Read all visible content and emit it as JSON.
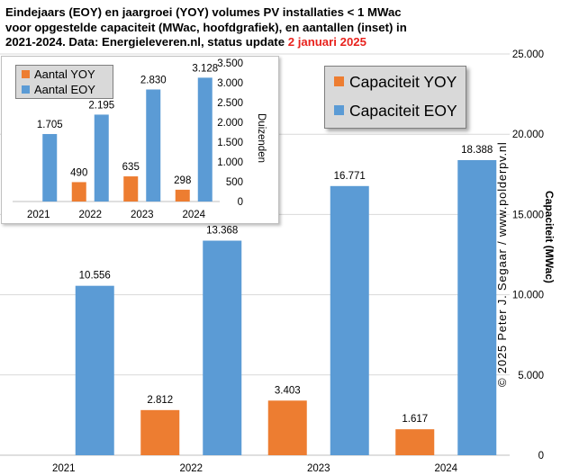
{
  "title": {
    "line1": "Eindejaars (EOY) en jaargroei (YOY) volumes PV installaties < 1 MWac",
    "line2": "voor opgestelde capaciteit (MWac, hoofdgrafiek), en aantallen (inset) in",
    "line3_pre": "2021-2024. Data: Energieleveren.nl, status update ",
    "line3_highlight": "2 januari 2025",
    "highlight_color": "#e8231e"
  },
  "credit": "© 2025 Peter J. Segaar / www.polderpv.nl",
  "chart_data": [
    {
      "id": "main",
      "type": "bar",
      "categories": [
        "2021",
        "2022",
        "2023",
        "2024"
      ],
      "series": [
        {
          "name": "Capaciteit YOY",
          "color": "#ed7d31",
          "values": [
            null,
            2812,
            3403,
            1617
          ],
          "labels": [
            "",
            "2.812",
            "3.403",
            "1.617"
          ]
        },
        {
          "name": "Capaciteit EOY",
          "color": "#5b9bd5",
          "values": [
            10556,
            13368,
            16771,
            18388
          ],
          "labels": [
            "10.556",
            "13.368",
            "16.771",
            "18.388"
          ]
        }
      ],
      "ylabel": "Capaciteit (MWac)",
      "ylim": [
        0,
        25000
      ],
      "yticks": [
        0,
        5000,
        10000,
        15000,
        20000,
        25000
      ],
      "ytick_labels": [
        "0",
        "5.000",
        "10.000",
        "15.000",
        "20.000",
        "25.000"
      ],
      "y_axis_side": "right",
      "grid": true,
      "legend_position": "top-right"
    },
    {
      "id": "inset",
      "type": "bar",
      "categories": [
        "2021",
        "2022",
        "2023",
        "2024"
      ],
      "series": [
        {
          "name": "Aantal YOY",
          "color": "#ed7d31",
          "values": [
            null,
            490,
            635,
            298
          ],
          "labels": [
            "",
            "490",
            "635",
            "298"
          ]
        },
        {
          "name": "Aantal EOY",
          "color": "#5b9bd5",
          "values": [
            1705,
            2195,
            2830,
            3128
          ],
          "labels": [
            "1.705",
            "2.195",
            "2.830",
            "3.128"
          ]
        }
      ],
      "ylabel": "Duizenden",
      "ylim": [
        0,
        3500
      ],
      "yticks": [
        0,
        500,
        1000,
        1500,
        2000,
        2500,
        3000,
        3500
      ],
      "ytick_labels": [
        "0",
        "500",
        "1.000",
        "1.500",
        "2.000",
        "2.500",
        "3.000",
        "3.500"
      ],
      "y_axis_side": "right",
      "grid": false,
      "legend_position": "top-left"
    }
  ]
}
